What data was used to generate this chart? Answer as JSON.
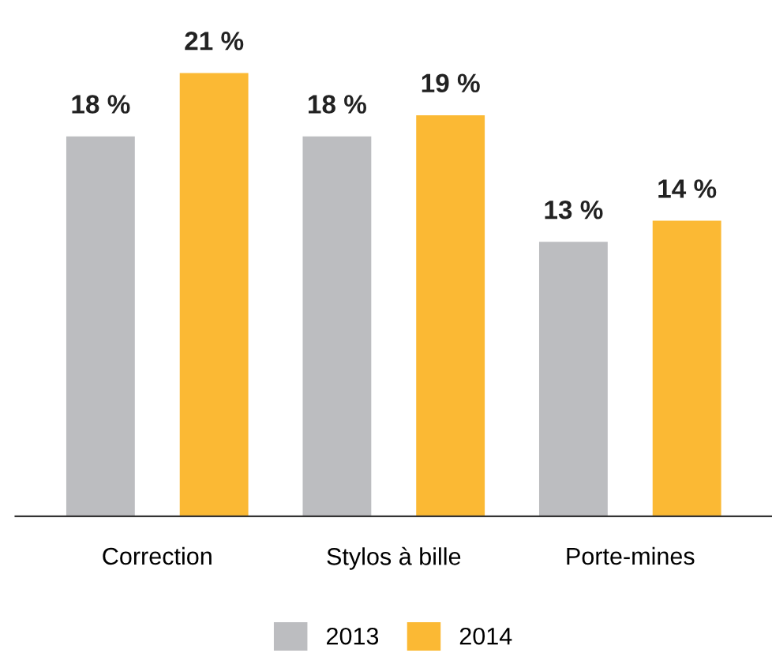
{
  "chart_data": {
    "type": "bar",
    "categories": [
      "Correction",
      "Stylos à bille",
      "Porte-mines"
    ],
    "series": [
      {
        "name": "2013",
        "color": "#bcbdc0",
        "values": [
          18,
          18,
          13
        ],
        "value_labels": [
          "18 %",
          "18 %",
          "13 %"
        ]
      },
      {
        "name": "2014",
        "color": "#fbb934",
        "values": [
          21,
          19,
          14
        ],
        "value_labels": [
          "21 %",
          "19 %",
          "14 %"
        ]
      }
    ],
    "legend": "bottom",
    "grid": false
  }
}
